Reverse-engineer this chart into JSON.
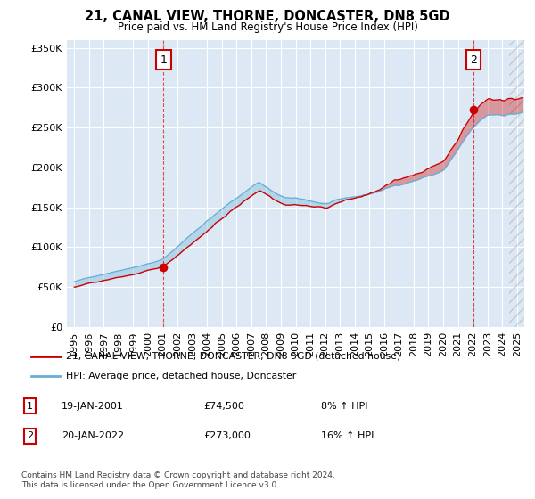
{
  "title": "21, CANAL VIEW, THORNE, DONCASTER, DN8 5GD",
  "subtitle": "Price paid vs. HM Land Registry's House Price Index (HPI)",
  "background_color": "#dce9f5",
  "hpi_color": "#6aaed6",
  "price_color": "#cc0000",
  "annotation1_price": 74500,
  "annotation1_year": 2001.05,
  "annotation2_price": 273000,
  "annotation2_year": 2022.05,
  "legend_line1": "21, CANAL VIEW, THORNE, DONCASTER, DN8 5GD (detached house)",
  "legend_line2": "HPI: Average price, detached house, Doncaster",
  "footer": "Contains HM Land Registry data © Crown copyright and database right 2024.\nThis data is licensed under the Open Government Licence v3.0.",
  "ylim": [
    0,
    360000
  ],
  "yticks": [
    0,
    50000,
    100000,
    150000,
    200000,
    250000,
    300000,
    350000
  ],
  "xmin": 1994.5,
  "xmax": 2025.5
}
